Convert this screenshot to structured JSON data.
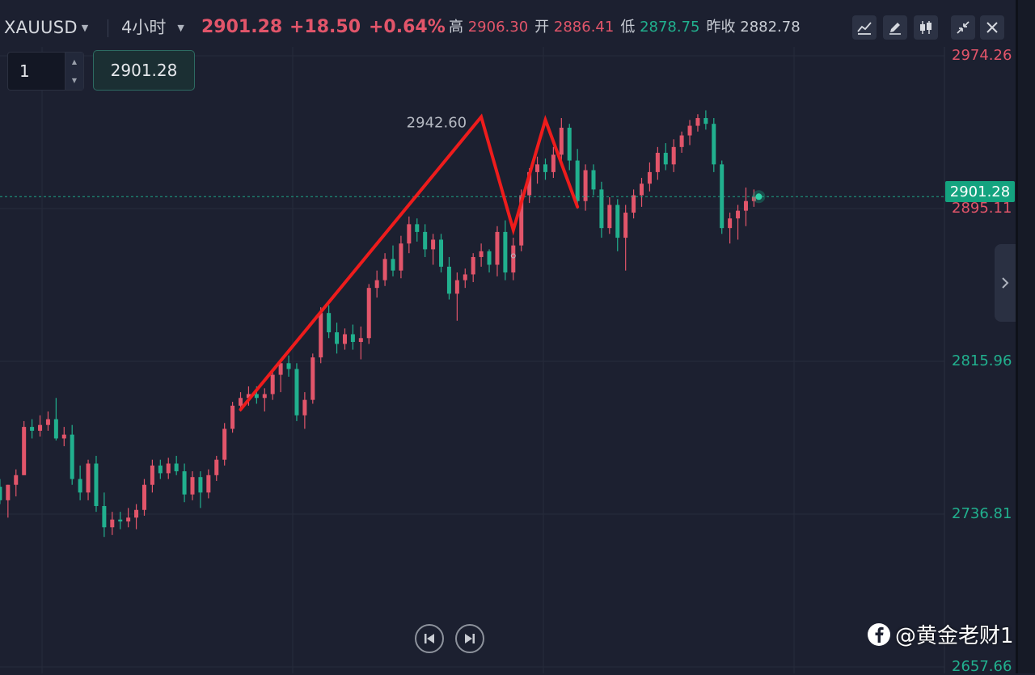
{
  "header": {
    "symbol": "XAUUSD",
    "timeframe": "4小时",
    "price": "2901.28",
    "change": "+18.50",
    "change_pct": "+0.64%",
    "high_label": "高",
    "high": "2906.30",
    "open_label": "开",
    "open": "2886.41",
    "low_label": "低",
    "low": "2878.75",
    "prev_close_label": "昨收",
    "prev_close": "2882.78"
  },
  "toolbar": {
    "icons": [
      "indicator-icon",
      "pencil-icon",
      "candle-type-icon",
      "collapse-icon",
      "close-icon"
    ]
  },
  "order": {
    "quantity": "1",
    "price": "2901.28"
  },
  "watermark": "@黄金老财1",
  "colors": {
    "background": "#1c2030",
    "up": "#e2556a",
    "down": "#21b08e",
    "drawing": "#ee1c1c",
    "current_price_badge": "#14a37f"
  },
  "chart_data": {
    "type": "candlestick",
    "ylim": [
      2650,
      2982
    ],
    "grid": true,
    "y_ticks": [
      {
        "value": 2974.26,
        "label": "2974.26",
        "color": "red"
      },
      {
        "value": 2895.11,
        "label": "2895.11",
        "color": "red"
      },
      {
        "value": 2815.96,
        "label": "2815.96",
        "color": "green"
      },
      {
        "value": 2736.81,
        "label": "2736.81",
        "color": "green"
      },
      {
        "value": 2657.66,
        "label": "2657.66",
        "color": "green"
      }
    ],
    "current_price": 2901.28,
    "peak_annotation": {
      "value": 2942.6,
      "label": "2942.60"
    },
    "candles": [
      [
        2753,
        2756,
        2748,
        2751
      ],
      [
        2751,
        2755,
        2742,
        2744
      ],
      [
        2744,
        2752,
        2735,
        2752
      ],
      [
        2752,
        2760,
        2746,
        2757
      ],
      [
        2757,
        2785,
        2757,
        2782
      ],
      [
        2782,
        2786,
        2776,
        2780
      ],
      [
        2780,
        2788,
        2777,
        2783
      ],
      [
        2783,
        2790,
        2780,
        2786
      ],
      [
        2786,
        2797,
        2775,
        2776
      ],
      [
        2776,
        2782,
        2772,
        2778
      ],
      [
        2778,
        2783,
        2752,
        2755
      ],
      [
        2755,
        2762,
        2744,
        2748
      ],
      [
        2748,
        2765,
        2744,
        2763
      ],
      [
        2763,
        2767,
        2738,
        2741
      ],
      [
        2741,
        2748,
        2725,
        2730
      ],
      [
        2730,
        2738,
        2726,
        2734
      ],
      [
        2734,
        2738,
        2729,
        2733
      ],
      [
        2733,
        2740,
        2730,
        2735
      ],
      [
        2735,
        2742,
        2729,
        2739
      ],
      [
        2739,
        2755,
        2736,
        2752
      ],
      [
        2752,
        2765,
        2748,
        2762
      ],
      [
        2762,
        2765,
        2755,
        2758
      ],
      [
        2758,
        2766,
        2755,
        2763
      ],
      [
        2763,
        2767,
        2757,
        2759
      ],
      [
        2759,
        2763,
        2743,
        2747
      ],
      [
        2747,
        2759,
        2744,
        2756
      ],
      [
        2756,
        2759,
        2740,
        2748
      ],
      [
        2748,
        2760,
        2745,
        2757
      ],
      [
        2757,
        2767,
        2754,
        2765
      ],
      [
        2765,
        2784,
        2762,
        2781
      ],
      [
        2781,
        2795,
        2779,
        2793
      ],
      [
        2793,
        2800,
        2790,
        2797
      ],
      [
        2797,
        2803,
        2793,
        2799
      ],
      [
        2799,
        2803,
        2794,
        2797
      ],
      [
        2797,
        2802,
        2790,
        2799
      ],
      [
        2799,
        2811,
        2796,
        2809
      ],
      [
        2809,
        2817,
        2800,
        2815
      ],
      [
        2815,
        2819,
        2808,
        2812
      ],
      [
        2812,
        2815,
        2785,
        2788
      ],
      [
        2788,
        2800,
        2781,
        2796
      ],
      [
        2796,
        2820,
        2794,
        2818
      ],
      [
        2818,
        2844,
        2815,
        2841
      ],
      [
        2841,
        2845,
        2828,
        2831
      ],
      [
        2831,
        2836,
        2820,
        2825
      ],
      [
        2825,
        2833,
        2822,
        2830
      ],
      [
        2830,
        2835,
        2822,
        2826
      ],
      [
        2826,
        2834,
        2817,
        2828
      ],
      [
        2828,
        2856,
        2825,
        2854
      ],
      [
        2854,
        2863,
        2849,
        2858
      ],
      [
        2858,
        2872,
        2855,
        2869
      ],
      [
        2869,
        2876,
        2860,
        2863
      ],
      [
        2863,
        2881,
        2859,
        2877
      ],
      [
        2877,
        2891,
        2872,
        2887
      ],
      [
        2887,
        2890,
        2878,
        2883
      ],
      [
        2883,
        2887,
        2870,
        2874
      ],
      [
        2874,
        2882,
        2866,
        2879
      ],
      [
        2879,
        2882,
        2862,
        2865
      ],
      [
        2865,
        2870,
        2848,
        2851
      ],
      [
        2851,
        2862,
        2837,
        2858
      ],
      [
        2858,
        2864,
        2854,
        2861
      ],
      [
        2861,
        2872,
        2857,
        2870
      ],
      [
        2870,
        2877,
        2865,
        2873
      ],
      [
        2873,
        2874,
        2862,
        2866
      ],
      [
        2866,
        2886,
        2860,
        2883
      ],
      [
        2883,
        2889,
        2858,
        2862
      ],
      [
        2862,
        2880,
        2858,
        2876
      ],
      [
        2876,
        2905,
        2873,
        2902
      ],
      [
        2902,
        2916,
        2898,
        2914
      ],
      [
        2914,
        2922,
        2908,
        2918
      ],
      [
        2918,
        2921,
        2910,
        2914
      ],
      [
        2914,
        2927,
        2911,
        2923
      ],
      [
        2923,
        2942,
        2917,
        2937
      ],
      [
        2937,
        2939,
        2915,
        2920
      ],
      [
        2920,
        2926,
        2895,
        2899
      ],
      [
        2899,
        2918,
        2894,
        2915
      ],
      [
        2915,
        2918,
        2902,
        2905
      ],
      [
        2905,
        2909,
        2880,
        2885
      ],
      [
        2885,
        2901,
        2882,
        2897
      ],
      [
        2897,
        2900,
        2873,
        2880
      ],
      [
        2880,
        2897,
        2863,
        2893
      ],
      [
        2893,
        2905,
        2890,
        2902
      ],
      [
        2902,
        2911,
        2896,
        2908
      ],
      [
        2908,
        2919,
        2904,
        2914
      ],
      [
        2914,
        2927,
        2910,
        2924
      ],
      [
        2924,
        2929,
        2915,
        2918
      ],
      [
        2918,
        2931,
        2914,
        2927
      ],
      [
        2927,
        2935,
        2924,
        2933
      ],
      [
        2933,
        2941,
        2928,
        2938
      ],
      [
        2938,
        2944,
        2935,
        2942
      ],
      [
        2942,
        2946,
        2936,
        2939
      ],
      [
        2939,
        2942,
        2914,
        2918
      ],
      [
        2918,
        2920,
        2882,
        2885
      ],
      [
        2885,
        2893,
        2877,
        2890
      ],
      [
        2890,
        2897,
        2879,
        2894
      ],
      [
        2894,
        2906,
        2886,
        2899
      ],
      [
        2899,
        2905,
        2896,
        2901.28
      ]
    ],
    "drawing_lines": [
      {
        "points": [
          [
            0,
            2791
          ],
          [
            30,
            2942.6
          ],
          [
            34,
            2884
          ],
          [
            38,
            2941
          ],
          [
            42,
            2896
          ]
        ]
      }
    ]
  }
}
